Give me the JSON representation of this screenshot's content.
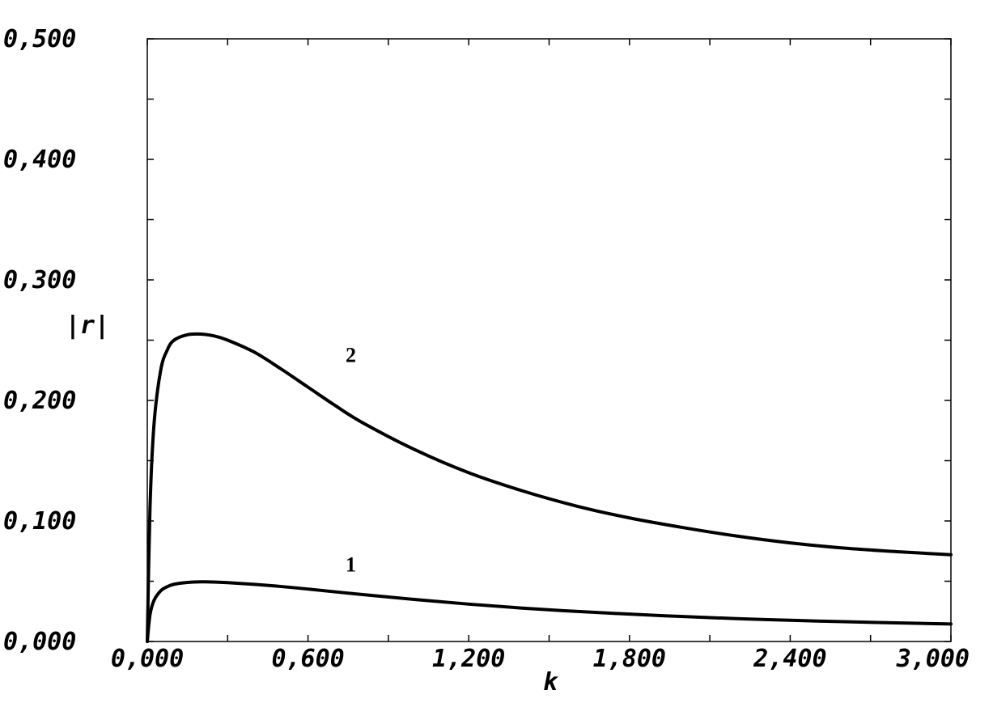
{
  "chart_data": {
    "type": "line",
    "title": "",
    "xlabel": "k",
    "ylabel": "|r|",
    "xlim": [
      0,
      3
    ],
    "ylim": [
      0,
      0.5
    ],
    "x_ticks": [
      0,
      0.6,
      1.2,
      1.8,
      2.4,
      3.0
    ],
    "x_tick_labels": [
      "0,000",
      "0,600",
      "1,200",
      "1,800",
      "2,400",
      "3,000"
    ],
    "y_ticks": [
      0,
      0.1,
      0.2,
      0.3,
      0.4,
      0.5
    ],
    "y_tick_labels": [
      "0,000",
      "0,100",
      "0,200",
      "0,300",
      "0,400",
      "0,500"
    ],
    "x_minor_step": 0.3,
    "y_minor_step": 0.05,
    "grid": false,
    "legend": "none",
    "series": [
      {
        "label": "1",
        "label_at": [
          0.76,
          0.058
        ],
        "x": [
          0,
          0.01,
          0.025,
          0.05,
          0.075,
          0.1,
          0.15,
          0.2,
          0.25,
          0.3,
          0.4,
          0.5,
          0.6,
          0.8,
          1.0,
          1.2,
          1.4,
          1.6,
          1.8,
          2.0,
          2.2,
          2.4,
          2.6,
          2.8,
          3.0
        ],
        "y": [
          0,
          0.022,
          0.034,
          0.042,
          0.0455,
          0.0475,
          0.049,
          0.0495,
          0.0493,
          0.0488,
          0.0474,
          0.0456,
          0.0435,
          0.039,
          0.0348,
          0.031,
          0.0277,
          0.025,
          0.0227,
          0.0207,
          0.019,
          0.0176,
          0.0164,
          0.0154,
          0.0145
        ]
      },
      {
        "label": "2",
        "label_at": [
          0.76,
          0.232
        ],
        "x": [
          0,
          0.01,
          0.025,
          0.05,
          0.075,
          0.1,
          0.15,
          0.2,
          0.25,
          0.3,
          0.4,
          0.5,
          0.6,
          0.7,
          0.8,
          1.0,
          1.2,
          1.4,
          1.6,
          1.8,
          2.0,
          2.2,
          2.4,
          2.6,
          2.8,
          3.0
        ],
        "y": [
          0,
          0.11,
          0.18,
          0.225,
          0.242,
          0.25,
          0.2545,
          0.255,
          0.2535,
          0.25,
          0.24,
          0.226,
          0.211,
          0.196,
          0.182,
          0.159,
          0.14,
          0.125,
          0.1125,
          0.1025,
          0.0945,
          0.0875,
          0.0818,
          0.0775,
          0.0745,
          0.072
        ]
      }
    ]
  }
}
